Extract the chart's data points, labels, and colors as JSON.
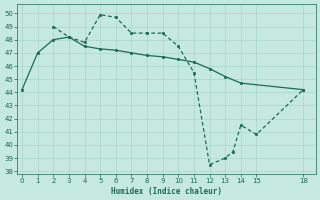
{
  "xlabel": "Humidex (Indice chaleur)",
  "xlim": [
    -0.3,
    18.8
  ],
  "ylim": [
    37.8,
    50.7
  ],
  "xticks": [
    0,
    1,
    2,
    3,
    4,
    5,
    6,
    7,
    8,
    9,
    10,
    11,
    12,
    13,
    14,
    15,
    18
  ],
  "yticks": [
    38,
    39,
    40,
    41,
    42,
    43,
    44,
    45,
    46,
    47,
    48,
    49,
    50
  ],
  "bg_color": "#c5e8e0",
  "grid_color": "#a8d4cc",
  "line_color": "#1a6b5a",
  "line1_x": [
    0,
    1,
    2,
    3,
    4,
    5,
    6,
    7,
    8,
    9,
    10,
    11,
    12,
    13,
    14,
    18
  ],
  "line1_y": [
    44.2,
    47.0,
    48.0,
    48.2,
    47.5,
    47.3,
    47.2,
    47.0,
    46.8,
    46.7,
    46.5,
    46.3,
    45.8,
    45.2,
    44.7,
    44.2
  ],
  "line2_x": [
    2,
    3,
    4,
    5,
    6,
    7,
    8,
    9,
    10,
    11,
    12,
    13,
    13.5,
    14,
    15,
    18
  ],
  "line2_y": [
    49.0,
    48.2,
    47.8,
    49.9,
    49.7,
    48.5,
    48.5,
    48.5,
    47.5,
    45.5,
    38.5,
    39.0,
    39.5,
    41.5,
    40.8,
    44.2
  ]
}
